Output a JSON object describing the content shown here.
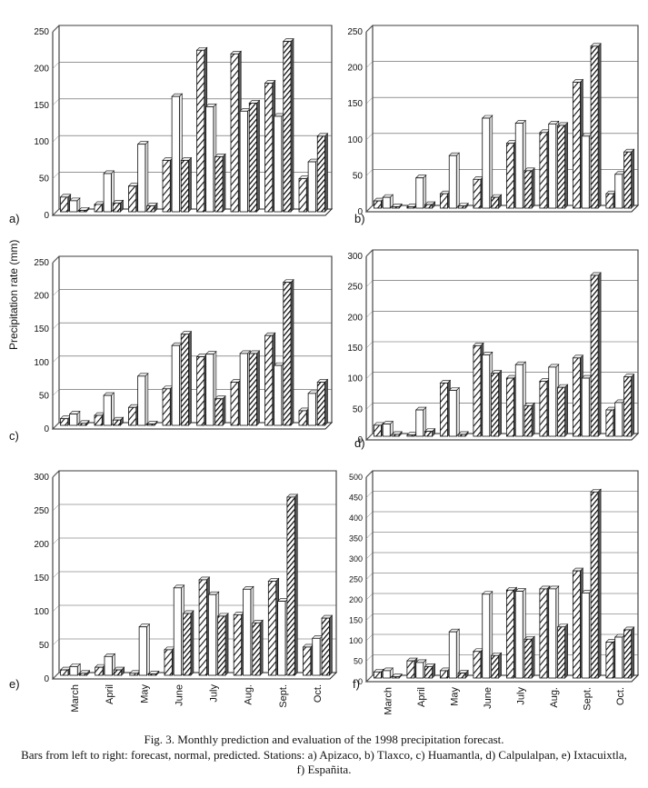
{
  "figure": {
    "ylabel": "Precipitation rate (mm)",
    "caption_line1": "Fig. 3. Monthly prediction and evaluation of the 1998 precipitation forecast.",
    "caption_line2": "Bars from left to right: forecast, normal, predicted. Stations: a) Apizaco, b) Tlaxco, c) Huamantla, d) Calpulalpan, e) Ixtacuixtla, f) Españita."
  },
  "chart_data": [
    {
      "panel": "a)",
      "type": "bar",
      "categories": [
        "March",
        "April",
        "May",
        "June",
        "July",
        "Aug.",
        "Sept.",
        "Oct."
      ],
      "ylim": [
        0,
        250
      ],
      "yticks": [
        0,
        50,
        100,
        150,
        200,
        250
      ],
      "grid": true,
      "series": [
        {
          "values": [
            20,
            10,
            35,
            70,
            220,
            215,
            175,
            45
          ]
        },
        {
          "values": [
            15,
            52,
            92,
            157,
            143,
            137,
            130,
            68
          ]
        },
        {
          "values": [
            2,
            12,
            8,
            70,
            75,
            148,
            232,
            103
          ]
        }
      ]
    },
    {
      "panel": "b)",
      "type": "bar",
      "categories": [
        "March",
        "April",
        "May",
        "June",
        "July",
        "Aug.",
        "Sept.",
        "Oct."
      ],
      "ylim": [
        0,
        250
      ],
      "yticks": [
        0,
        50,
        100,
        150,
        200,
        250
      ],
      "grid": true,
      "series": [
        {
          "values": [
            10,
            2,
            20,
            40,
            90,
            105,
            175,
            20
          ]
        },
        {
          "values": [
            15,
            42,
            73,
            125,
            118,
            117,
            100,
            47
          ]
        },
        {
          "values": [
            2,
            5,
            3,
            15,
            52,
            115,
            225,
            78
          ]
        }
      ]
    },
    {
      "panel": "c)",
      "type": "bar",
      "categories": [
        "March",
        "April",
        "May",
        "June",
        "July",
        "Aug.",
        "Sept.",
        "Oct."
      ],
      "ylim": [
        0,
        250
      ],
      "yticks": [
        0,
        50,
        100,
        150,
        200,
        250
      ],
      "grid": true,
      "series": [
        {
          "values": [
            10,
            15,
            27,
            55,
            103,
            65,
            135,
            22
          ]
        },
        {
          "values": [
            17,
            45,
            74,
            120,
            107,
            108,
            90,
            48
          ]
        },
        {
          "values": [
            3,
            8,
            2,
            137,
            40,
            108,
            215,
            65
          ]
        }
      ]
    },
    {
      "panel": "d)",
      "type": "bar",
      "categories": [
        "March",
        "April",
        "May",
        "June",
        "July",
        "Aug.",
        "Sept.",
        "Oct."
      ],
      "ylim": [
        0,
        300
      ],
      "yticks": [
        0,
        50,
        100,
        150,
        200,
        250,
        300
      ],
      "grid": true,
      "series": [
        {
          "values": [
            18,
            2,
            87,
            148,
            95,
            90,
            128,
            43
          ]
        },
        {
          "values": [
            20,
            43,
            75,
            133,
            117,
            113,
            95,
            55
          ]
        },
        {
          "values": [
            3,
            8,
            3,
            103,
            50,
            80,
            263,
            97
          ]
        }
      ]
    },
    {
      "panel": "e)",
      "type": "bar",
      "categories": [
        "March",
        "April",
        "May",
        "June",
        "July",
        "Aug.",
        "Sept.",
        "Oct."
      ],
      "ylim": [
        0,
        300
      ],
      "yticks": [
        0,
        50,
        100,
        150,
        200,
        250,
        300
      ],
      "grid": true,
      "series": [
        {
          "values": [
            8,
            12,
            3,
            38,
            142,
            90,
            140,
            42
          ]
        },
        {
          "values": [
            13,
            28,
            72,
            130,
            120,
            128,
            110,
            55
          ]
        },
        {
          "values": [
            3,
            8,
            2,
            92,
            88,
            78,
            265,
            85
          ]
        }
      ]
    },
    {
      "panel": "f)",
      "type": "bar",
      "categories": [
        "March",
        "April",
        "May",
        "June",
        "July",
        "Aug.",
        "Sept.",
        "Oct."
      ],
      "ylim": [
        0,
        500
      ],
      "yticks": [
        0,
        50,
        100,
        150,
        200,
        250,
        300,
        350,
        400,
        450,
        500
      ],
      "grid": true,
      "series": [
        {
          "values": [
            15,
            42,
            18,
            65,
            215,
            218,
            262,
            88
          ]
        },
        {
          "values": [
            18,
            38,
            113,
            205,
            212,
            218,
            208,
            100
          ]
        },
        {
          "values": [
            3,
            28,
            12,
            55,
            95,
            125,
            455,
            118
          ]
        }
      ]
    }
  ]
}
